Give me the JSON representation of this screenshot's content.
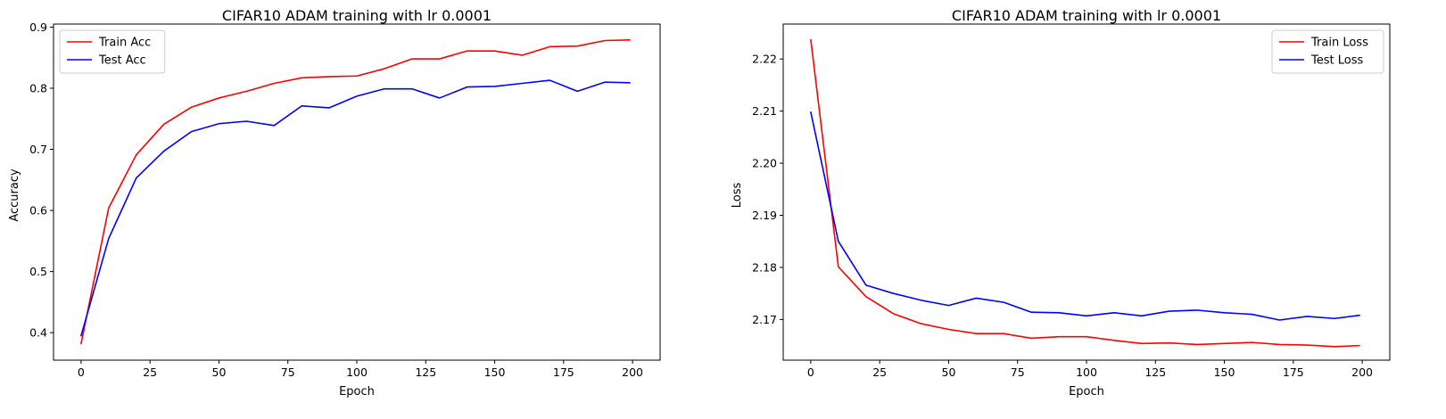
{
  "chart_data": [
    {
      "type": "line",
      "title": "CIFAR10 ADAM training with lr 0.0001",
      "xlabel": "Epoch",
      "ylabel": "Accuracy",
      "xlim": [
        -10,
        210
      ],
      "ylim": [
        0.355,
        0.905
      ],
      "xticks": [
        0,
        25,
        50,
        75,
        100,
        125,
        150,
        175,
        200
      ],
      "yticks": [
        0.4,
        0.5,
        0.6,
        0.7,
        0.8,
        0.9
      ],
      "ytick_decimals": 1,
      "legend_position": "top-left",
      "x": [
        0,
        10,
        20,
        30,
        40,
        50,
        60,
        70,
        80,
        90,
        100,
        110,
        120,
        130,
        140,
        150,
        160,
        170,
        180,
        190,
        199
      ],
      "series": [
        {
          "name": "Train Acc",
          "color": "#ff0000",
          "values": [
            0.382,
            0.604,
            0.691,
            0.741,
            0.769,
            0.784,
            0.795,
            0.808,
            0.817,
            0.819,
            0.82,
            0.832,
            0.848,
            0.848,
            0.861,
            0.861,
            0.854,
            0.868,
            0.869,
            0.878,
            0.879
          ]
        },
        {
          "name": "Test Acc",
          "color": "#0000ff",
          "values": [
            0.395,
            0.554,
            0.653,
            0.697,
            0.729,
            0.742,
            0.746,
            0.739,
            0.771,
            0.768,
            0.787,
            0.799,
            0.799,
            0.784,
            0.802,
            0.803,
            0.808,
            0.813,
            0.795,
            0.81,
            0.809
          ]
        }
      ]
    },
    {
      "type": "line",
      "title": "CIFAR10 ADAM training with lr 0.0001",
      "xlabel": "Epoch",
      "ylabel": "Loss",
      "xlim": [
        -10,
        210
      ],
      "ylim": [
        2.1622,
        2.2267
      ],
      "xticks": [
        0,
        25,
        50,
        75,
        100,
        125,
        150,
        175,
        200
      ],
      "yticks": [
        2.17,
        2.18,
        2.19,
        2.2,
        2.21,
        2.22
      ],
      "ytick_decimals": 2,
      "legend_position": "top-right",
      "x": [
        0,
        10,
        20,
        30,
        40,
        50,
        60,
        70,
        80,
        90,
        100,
        110,
        120,
        130,
        140,
        150,
        160,
        170,
        180,
        190,
        199
      ],
      "series": [
        {
          "name": "Train Loss",
          "color": "#ff0000",
          "values": [
            2.2237,
            2.1801,
            2.1744,
            2.1711,
            2.1692,
            2.1681,
            2.1673,
            2.1673,
            2.1664,
            2.1667,
            2.1667,
            2.166,
            2.1654,
            2.1655,
            2.1652,
            2.1654,
            2.1656,
            2.1652,
            2.1651,
            2.1648,
            2.165
          ]
        },
        {
          "name": "Test Loss",
          "color": "#0000ff",
          "values": [
            2.2098,
            2.185,
            2.1766,
            2.175,
            2.1737,
            2.1727,
            2.1741,
            2.1733,
            2.1714,
            2.1713,
            2.1707,
            2.1713,
            2.1707,
            2.1716,
            2.1718,
            2.1713,
            2.171,
            2.1699,
            2.1706,
            2.1702,
            2.1708
          ]
        }
      ]
    }
  ]
}
